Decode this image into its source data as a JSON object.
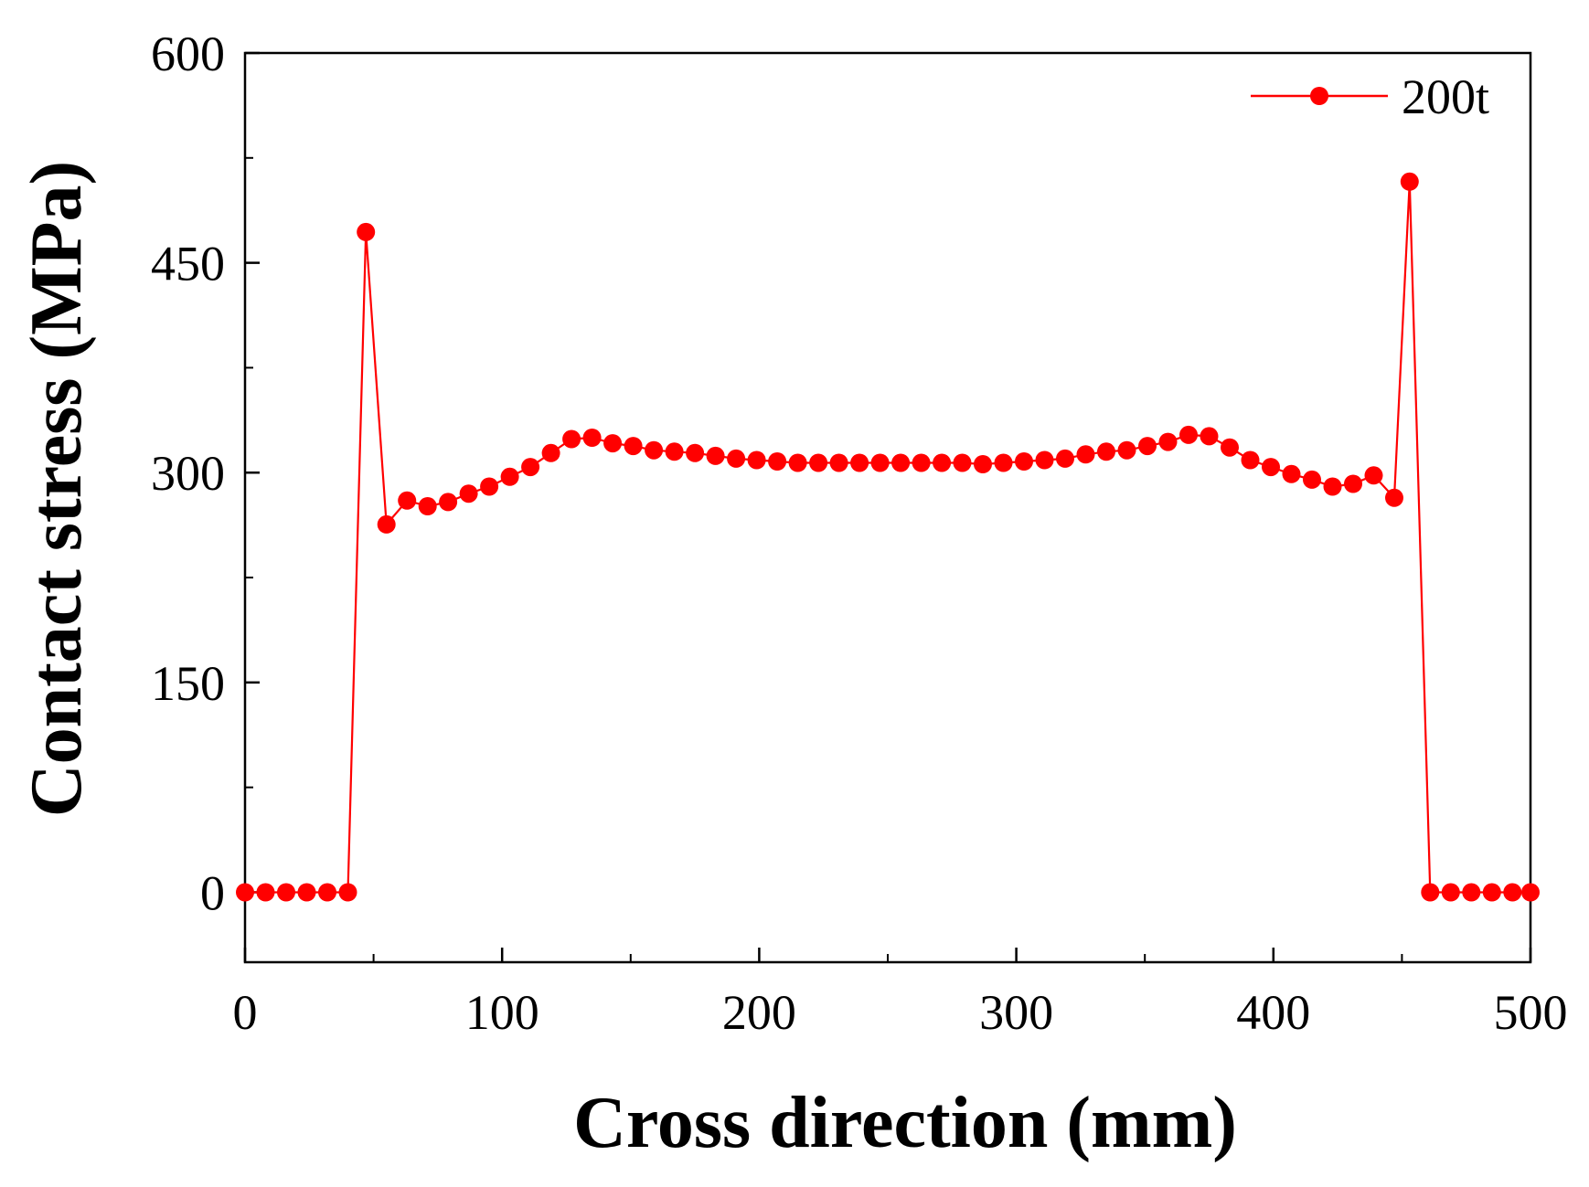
{
  "colors": {
    "series": "#ff0000",
    "axis": "#000000",
    "background": "#ffffff"
  },
  "chart_data": {
    "type": "line",
    "title": "",
    "xlabel": "Cross direction (mm)",
    "ylabel": "Contact stress (MPa)",
    "xlim": [
      0,
      500
    ],
    "ylim": [
      -50,
      600
    ],
    "xticks": [
      0,
      100,
      200,
      300,
      400,
      500
    ],
    "xtick_labels": [
      "0",
      "100",
      "200",
      "300",
      "400",
      "500"
    ],
    "yticks": [
      0,
      150,
      300,
      450,
      600
    ],
    "ytick_labels": [
      "0",
      "150",
      "300",
      "450",
      "600"
    ],
    "grid": false,
    "legend": {
      "position": "top-right",
      "entries": [
        "200t"
      ]
    },
    "series": [
      {
        "name": "200t",
        "marker": "circle",
        "x": [
          0,
          8,
          16,
          24,
          32,
          40,
          47,
          55,
          63,
          71,
          79,
          87,
          95,
          103,
          111,
          119,
          127,
          135,
          143,
          151,
          159,
          167,
          175,
          183,
          191,
          199,
          207,
          215,
          223,
          231,
          239,
          247,
          255,
          263,
          271,
          279,
          287,
          295,
          303,
          311,
          319,
          327,
          335,
          343,
          351,
          359,
          367,
          375,
          383,
          391,
          399,
          407,
          415,
          423,
          431,
          439,
          447,
          453,
          461,
          469,
          477,
          485,
          493,
          500
        ],
        "values": [
          0,
          0,
          0,
          0,
          0,
          0,
          472,
          263,
          280,
          276,
          279,
          285,
          290,
          297,
          304,
          314,
          324,
          325,
          321,
          319,
          316,
          315,
          314,
          312,
          310,
          309,
          308,
          307,
          307,
          307,
          307,
          307,
          307,
          307,
          307,
          307,
          306,
          307,
          308,
          309,
          310,
          313,
          315,
          316,
          319,
          322,
          327,
          326,
          318,
          309,
          304,
          299,
          295,
          290,
          292,
          298,
          282,
          508,
          0,
          0,
          0,
          0,
          0,
          0
        ]
      }
    ]
  }
}
